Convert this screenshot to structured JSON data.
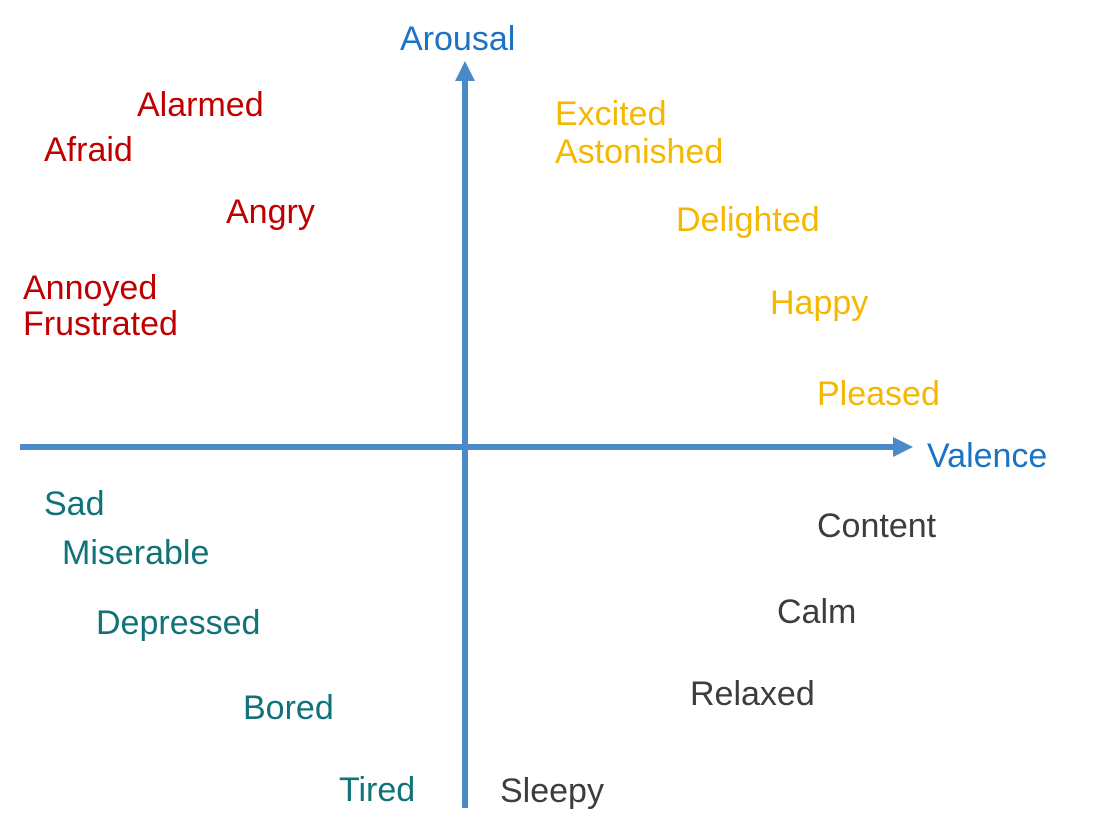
{
  "axes": {
    "x_label": "Valence",
    "y_label": "Arousal",
    "axis_color": "#4a8ac8",
    "label_color": "#1a73c4"
  },
  "quadrants": {
    "top_left": {
      "color": "#c00000",
      "words": [
        "Alarmed",
        "Afraid",
        "Angry",
        "Annoyed",
        "Frustrated"
      ]
    },
    "top_right": {
      "color": "#f5b800",
      "words": [
        "Excited",
        "Astonished",
        "Delighted",
        "Happy",
        "Pleased"
      ]
    },
    "bottom_left": {
      "color": "#0f7378",
      "words": [
        "Sad",
        "Miserable",
        "Depressed",
        "Bored",
        "Tired"
      ]
    },
    "bottom_right": {
      "color": "#3d3d3d",
      "words": [
        "Content",
        "Calm",
        "Relaxed",
        "Sleepy"
      ]
    }
  }
}
